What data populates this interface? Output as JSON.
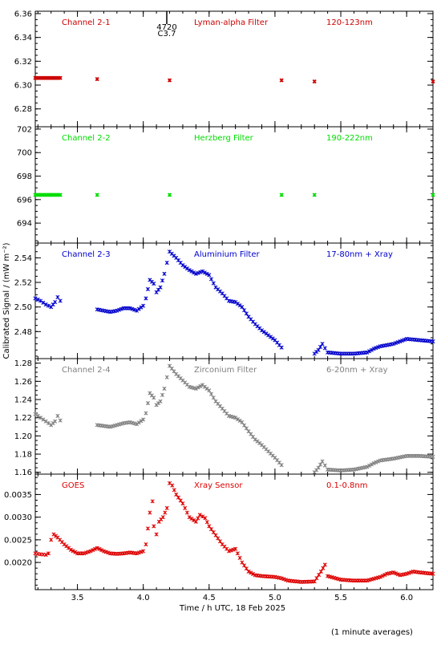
{
  "figure": {
    "xlabel": "Time / h UTC, 18 Feb 2025",
    "ylabel": "Calibrated Signal / (mW m⁻²)",
    "footnote": "(1 minute averages)",
    "marker": {
      "label_top": "4720",
      "label_bottom": "C3.7",
      "x": 4.2
    }
  },
  "chart_data": [
    {
      "type": "scatter",
      "channel": "Channel 2-1",
      "filter": "Lyman-alpha Filter",
      "band": "120-123nm",
      "color": "#cc0000",
      "xlim": [
        3.18,
        6.2
      ],
      "ylim": [
        6.265,
        6.362
      ],
      "yticks": [
        "6.28",
        "6.30",
        "6.32",
        "6.34",
        "6.36"
      ],
      "series": [
        {
          "values": [
            [
              3.18,
              6.306
            ],
            [
              3.37,
              6.306
            ],
            [
              3.65,
              6.305
            ],
            [
              4.2,
              6.304
            ],
            [
              5.05,
              6.304
            ],
            [
              5.3,
              6.303
            ],
            [
              6.2,
              6.303
            ]
          ]
        }
      ]
    },
    {
      "type": "scatter",
      "channel": "Channel 2-2",
      "filter": "Herzberg Filter",
      "band": "190-222nm",
      "color": "#00dd00",
      "xlim": [
        3.18,
        6.2
      ],
      "ylim": [
        692.3,
        702.2
      ],
      "yticks": [
        "694",
        "696",
        "698",
        "700",
        "702"
      ],
      "series": [
        {
          "values": [
            [
              3.18,
              696.4
            ],
            [
              3.37,
              696.4
            ],
            [
              3.65,
              696.4
            ],
            [
              4.2,
              696.4
            ],
            [
              5.05,
              696.4
            ],
            [
              5.3,
              696.4
            ],
            [
              6.2,
              696.4
            ]
          ]
        }
      ]
    },
    {
      "type": "scatter",
      "channel": "Channel 2-3",
      "filter": "Aluminium Filter",
      "band": "17-80nm + Xray",
      "color": "#0000cc",
      "xlim": [
        3.18,
        6.2
      ],
      "ylim": [
        2.458,
        2.552
      ],
      "yticks": [
        "2.48",
        "2.50",
        "2.52",
        "2.54"
      ],
      "series": [
        {
          "values": [
            [
              3.18,
              2.507
            ],
            [
              3.22,
              2.505
            ],
            [
              3.26,
              2.502
            ],
            [
              3.3,
              2.5
            ],
            [
              3.33,
              2.504
            ],
            [
              3.35,
              2.508
            ],
            [
              3.37,
              2.505
            ],
            [
              3.65,
              2.498
            ],
            [
              3.7,
              2.497
            ],
            [
              3.75,
              2.496
            ],
            [
              3.8,
              2.497
            ],
            [
              3.85,
              2.499
            ],
            [
              3.9,
              2.499
            ],
            [
              3.95,
              2.497
            ],
            [
              4.0,
              2.501
            ],
            [
              4.02,
              2.507
            ],
            [
              4.05,
              2.522
            ],
            [
              4.08,
              2.519
            ],
            [
              4.1,
              2.512
            ],
            [
              4.13,
              2.516
            ],
            [
              4.16,
              2.527
            ],
            [
              4.2,
              2.545
            ],
            [
              4.25,
              2.54
            ],
            [
              4.3,
              2.534
            ],
            [
              4.35,
              2.53
            ],
            [
              4.4,
              2.527
            ],
            [
              4.45,
              2.529
            ],
            [
              4.5,
              2.526
            ],
            [
              4.55,
              2.516
            ],
            [
              4.6,
              2.511
            ],
            [
              4.65,
              2.505
            ],
            [
              4.7,
              2.504
            ],
            [
              4.75,
              2.5
            ],
            [
              4.8,
              2.492
            ],
            [
              4.85,
              2.486
            ],
            [
              4.9,
              2.481
            ],
            [
              4.95,
              2.477
            ],
            [
              5.0,
              2.473
            ],
            [
              5.05,
              2.467
            ],
            [
              5.3,
              2.462
            ],
            [
              5.33,
              2.465
            ],
            [
              5.36,
              2.47
            ],
            [
              5.4,
              2.463
            ],
            [
              5.5,
              2.462
            ],
            [
              5.6,
              2.462
            ],
            [
              5.7,
              2.463
            ],
            [
              5.75,
              2.466
            ],
            [
              5.8,
              2.468
            ],
            [
              5.9,
              2.47
            ],
            [
              6.0,
              2.474
            ],
            [
              6.1,
              2.473
            ],
            [
              6.2,
              2.472
            ]
          ]
        }
      ]
    },
    {
      "type": "scatter",
      "channel": "Channel 2-4",
      "filter": "Zirconium Filter",
      "band": "6-20nm + Xray",
      "color": "#808080",
      "xlim": [
        3.18,
        6.2
      ],
      "ylim": [
        1.158,
        1.285
      ],
      "yticks": [
        "1.16",
        "1.18",
        "1.20",
        "1.22",
        "1.24",
        "1.26",
        "1.28"
      ],
      "series": [
        {
          "values": [
            [
              3.18,
              1.224
            ],
            [
              3.22,
              1.22
            ],
            [
              3.26,
              1.216
            ],
            [
              3.3,
              1.212
            ],
            [
              3.33,
              1.216
            ],
            [
              3.35,
              1.222
            ],
            [
              3.37,
              1.217
            ],
            [
              3.65,
              1.212
            ],
            [
              3.7,
              1.211
            ],
            [
              3.75,
              1.21
            ],
            [
              3.8,
              1.212
            ],
            [
              3.85,
              1.214
            ],
            [
              3.9,
              1.215
            ],
            [
              3.95,
              1.213
            ],
            [
              4.0,
              1.218
            ],
            [
              4.02,
              1.225
            ],
            [
              4.05,
              1.247
            ],
            [
              4.08,
              1.242
            ],
            [
              4.1,
              1.234
            ],
            [
              4.13,
              1.238
            ],
            [
              4.16,
              1.252
            ],
            [
              4.2,
              1.277
            ],
            [
              4.25,
              1.268
            ],
            [
              4.3,
              1.261
            ],
            [
              4.35,
              1.254
            ],
            [
              4.4,
              1.252
            ],
            [
              4.45,
              1.256
            ],
            [
              4.5,
              1.25
            ],
            [
              4.55,
              1.238
            ],
            [
              4.6,
              1.23
            ],
            [
              4.65,
              1.222
            ],
            [
              4.7,
              1.22
            ],
            [
              4.75,
              1.215
            ],
            [
              4.8,
              1.205
            ],
            [
              4.85,
              1.196
            ],
            [
              4.9,
              1.19
            ],
            [
              4.95,
              1.183
            ],
            [
              5.0,
              1.176
            ],
            [
              5.05,
              1.168
            ],
            [
              5.3,
              1.16
            ],
            [
              5.33,
              1.165
            ],
            [
              5.36,
              1.172
            ],
            [
              5.4,
              1.163
            ],
            [
              5.5,
              1.162
            ],
            [
              5.6,
              1.163
            ],
            [
              5.7,
              1.166
            ],
            [
              5.75,
              1.17
            ],
            [
              5.8,
              1.173
            ],
            [
              5.9,
              1.175
            ],
            [
              6.0,
              1.178
            ],
            [
              6.1,
              1.178
            ],
            [
              6.2,
              1.177
            ]
          ]
        }
      ]
    },
    {
      "type": "scatter",
      "channel": "GOES",
      "filter": "Xray Sensor",
      "band": "0.1-0.8nm",
      "color": "#dd0000",
      "xlim": [
        3.18,
        6.2
      ],
      "ylim": [
        0.0014,
        0.00395
      ],
      "yticks": [
        "0.0020",
        "0.0025",
        "0.0030",
        "0.0035"
      ],
      "xticks": [
        "3.5",
        "4.0",
        "4.5",
        "5.0",
        "5.5",
        "6.0"
      ],
      "series": [
        {
          "values": [
            [
              3.18,
              0.0022
            ],
            [
              3.22,
              0.00218
            ],
            [
              3.26,
              0.00217
            ],
            [
              3.28,
              0.0022
            ],
            [
              3.3,
              0.0025
            ],
            [
              3.32,
              0.00262
            ],
            [
              3.35,
              0.00255
            ],
            [
              3.4,
              0.0024
            ],
            [
              3.45,
              0.00228
            ],
            [
              3.5,
              0.0022
            ],
            [
              3.55,
              0.0022
            ],
            [
              3.6,
              0.00225
            ],
            [
              3.65,
              0.00232
            ],
            [
              3.7,
              0.00225
            ],
            [
              3.75,
              0.0022
            ],
            [
              3.8,
              0.00219
            ],
            [
              3.85,
              0.0022
            ],
            [
              3.9,
              0.00222
            ],
            [
              3.95,
              0.0022
            ],
            [
              4.0,
              0.00225
            ],
            [
              4.02,
              0.0024
            ],
            [
              4.05,
              0.0031
            ],
            [
              4.07,
              0.00335
            ],
            [
              4.08,
              0.0028
            ],
            [
              4.1,
              0.00262
            ],
            [
              4.12,
              0.0029
            ],
            [
              4.15,
              0.003
            ],
            [
              4.18,
              0.0032
            ],
            [
              4.2,
              0.00375
            ],
            [
              4.22,
              0.0037
            ],
            [
              4.25,
              0.0035
            ],
            [
              4.3,
              0.0033
            ],
            [
              4.35,
              0.003
            ],
            [
              4.4,
              0.0029
            ],
            [
              4.43,
              0.00305
            ],
            [
              4.47,
              0.00298
            ],
            [
              4.5,
              0.0028
            ],
            [
              4.55,
              0.0026
            ],
            [
              4.6,
              0.0024
            ],
            [
              4.65,
              0.00225
            ],
            [
              4.7,
              0.0023
            ],
            [
              4.75,
              0.002
            ],
            [
              4.8,
              0.0018
            ],
            [
              4.85,
              0.00172
            ],
            [
              4.9,
              0.0017
            ],
            [
              5.0,
              0.00168
            ],
            [
              5.05,
              0.00165
            ],
            [
              5.1,
              0.0016
            ],
            [
              5.2,
              0.00157
            ],
            [
              5.3,
              0.00158
            ],
            [
              5.35,
              0.0018
            ],
            [
              5.38,
              0.00195
            ],
            [
              5.4,
              0.0017
            ],
            [
              5.5,
              0.00162
            ],
            [
              5.6,
              0.0016
            ],
            [
              5.7,
              0.0016
            ],
            [
              5.8,
              0.00168
            ],
            [
              5.85,
              0.00175
            ],
            [
              5.9,
              0.00178
            ],
            [
              5.95,
              0.00172
            ],
            [
              6.0,
              0.00175
            ],
            [
              6.05,
              0.0018
            ],
            [
              6.1,
              0.00178
            ],
            [
              6.2,
              0.00175
            ]
          ]
        }
      ]
    }
  ]
}
